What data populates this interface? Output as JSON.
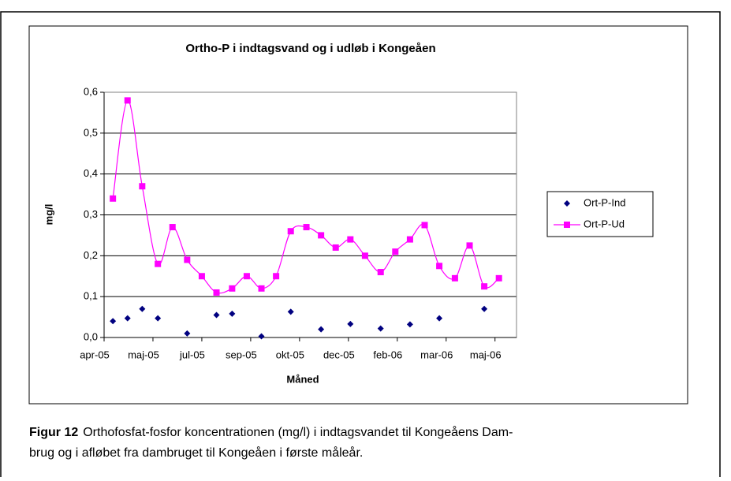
{
  "chart_data": {
    "type": "line",
    "title": "Ortho-P i indtagsvand og i udløb i Kongeåen",
    "x_label": "Måned",
    "y_label": "mg/l",
    "x": [
      38452,
      38467,
      38482,
      38498,
      38513,
      38528,
      38543,
      38558,
      38574,
      38589,
      38604,
      38619,
      38634,
      38650,
      38665,
      38680,
      38695,
      38710,
      38726,
      38741,
      38756,
      38771,
      38786,
      38802,
      38817,
      38832,
      38847
    ],
    "series": [
      {
        "name": "Ort-P-Ind",
        "color": "#000080",
        "marker": "diamond",
        "line": false,
        "values": [
          0.04,
          0.047,
          0.07,
          0.047,
          null,
          0.01,
          null,
          0.055,
          0.058,
          null,
          0.003,
          null,
          0.063,
          null,
          0.02,
          null,
          0.033,
          null,
          0.022,
          null,
          0.032,
          null,
          0.047,
          null,
          null,
          0.07,
          null
        ]
      },
      {
        "name": "Ort-P-Ud",
        "color": "#ff00ff",
        "marker": "square",
        "line": true,
        "values": [
          0.34,
          0.58,
          0.37,
          0.18,
          0.27,
          0.19,
          0.15,
          0.11,
          0.12,
          0.15,
          0.12,
          0.15,
          0.26,
          0.27,
          0.25,
          0.22,
          0.24,
          0.2,
          0.16,
          0.21,
          0.24,
          0.275,
          0.175,
          0.145,
          0.225,
          0.125,
          0.145
        ]
      }
    ],
    "xlim": [
      38443,
      38865
    ],
    "xticks": [
      {
        "value": 38443,
        "label": "apr-05"
      },
      {
        "value": 38493,
        "label": "maj-05"
      },
      {
        "value": 38543,
        "label": "jul-05"
      },
      {
        "value": 38593,
        "label": "sep-05"
      },
      {
        "value": 38643,
        "label": "okt-05"
      },
      {
        "value": 38693,
        "label": "dec-05"
      },
      {
        "value": 38743,
        "label": "feb-06"
      },
      {
        "value": 38793,
        "label": "mar-06"
      },
      {
        "value": 38843,
        "label": "maj-06"
      }
    ],
    "ylim": [
      0,
      0.6
    ],
    "yticks": [
      {
        "value": 0,
        "label": "0,0"
      },
      {
        "value": 0.1,
        "label": "0,1"
      },
      {
        "value": 0.2,
        "label": "0,2"
      },
      {
        "value": 0.3,
        "label": "0,3"
      },
      {
        "value": 0.4,
        "label": "0,4"
      },
      {
        "value": 0.5,
        "label": "0,5"
      },
      {
        "value": 0.6,
        "label": "0,6"
      }
    ],
    "grid": true
  },
  "caption": {
    "label": "Figur 12",
    "lines": [
      "Orthofosfat-fosfor koncentrationen (mg/l) i indtagsvandet til Kongeåens Dam-",
      "brug og i afløbet fra dambruget til Kongeåen i første måleår."
    ]
  }
}
